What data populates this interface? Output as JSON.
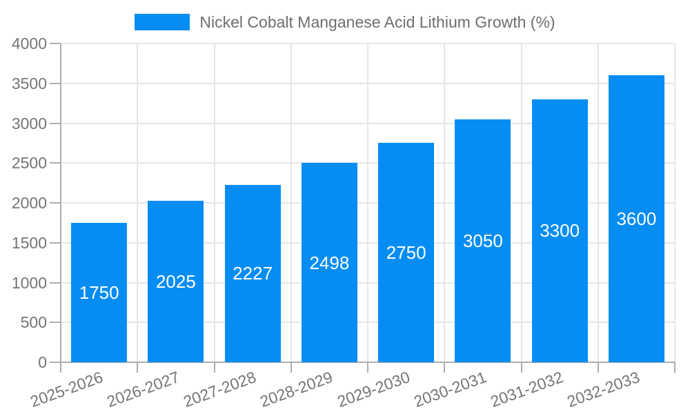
{
  "chart_data": {
    "type": "bar",
    "title": "",
    "xlabel": "",
    "ylabel": "",
    "categories": [
      "2025-2026",
      "2026-2027",
      "2027-2028",
      "2028-2029",
      "2029-2030",
      "2030-2031",
      "2031-2032",
      "2032-2033"
    ],
    "series": [
      {
        "name": "Nickel Cobalt Manganese Acid Lithium Growth (%)",
        "values": [
          1750,
          2025,
          2227,
          2498,
          2750,
          3050,
          3300,
          3600
        ]
      }
    ],
    "ylim": [
      0,
      4000
    ],
    "yticks": [
      0,
      500,
      1000,
      1500,
      2000,
      2500,
      3000,
      3500,
      4000
    ],
    "grid": true,
    "legend_position": "top-center",
    "value_labels_position": "inside-center",
    "x_label_rotation_deg": -20,
    "colors": {
      "bar": "#058DF3",
      "gridline": "#e6e6e6",
      "axis_line": "#adadad",
      "tick_text": "#757575",
      "legend_text": "#6e6e6e",
      "value_label": "#ffffff",
      "background": "#ffffff"
    }
  }
}
